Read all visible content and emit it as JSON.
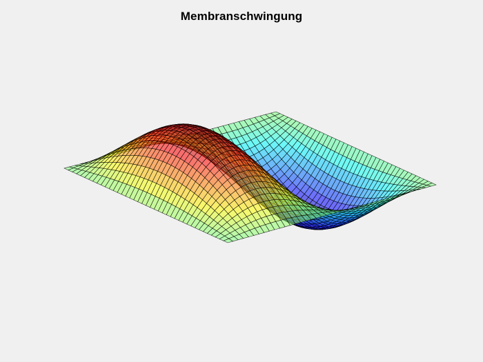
{
  "chart_data": {
    "type": "surface",
    "title": "Membranschwingung",
    "function": "sin(pi*x)*sin(2*pi*y)",
    "x_range": [
      0,
      1
    ],
    "y_range": [
      0,
      1
    ],
    "z_range": [
      -1,
      1
    ],
    "grid": false,
    "axes_visible": false,
    "mesh_resolution": 40,
    "colormap": "jet",
    "face_alpha": 0.55,
    "edge_color": "#000000",
    "background_color": "#f0f0f0"
  }
}
